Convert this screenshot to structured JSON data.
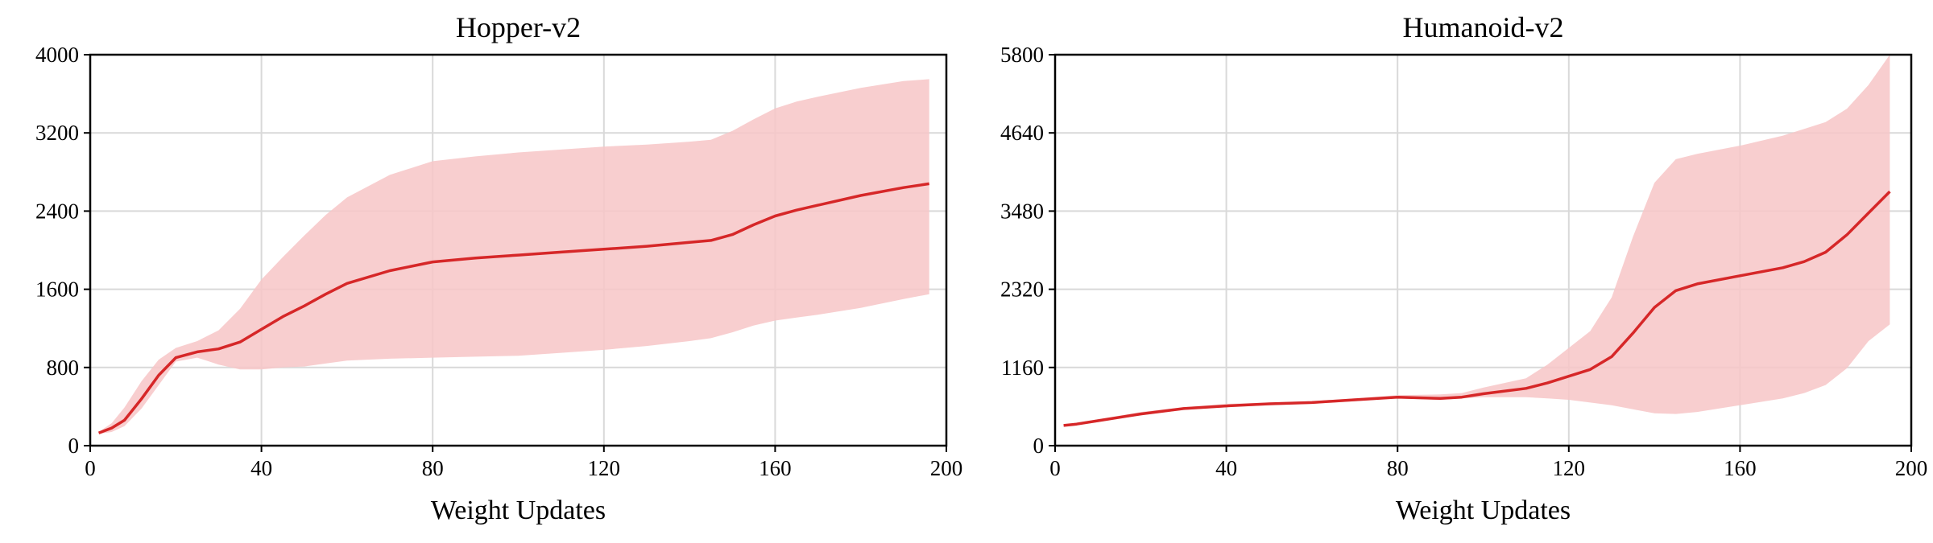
{
  "chart_data": [
    {
      "type": "line",
      "title": "Hopper-v2",
      "xlabel": "Weight Updates",
      "ylabel": "",
      "xlim": [
        0,
        200
      ],
      "ylim": [
        0,
        4000
      ],
      "xticks": [
        0,
        40,
        80,
        120,
        160,
        200
      ],
      "yticks": [
        0,
        800,
        1600,
        2400,
        3200,
        4000
      ],
      "grid": true,
      "line_color": "#d62728",
      "band_color": "#f7c6c7",
      "series": [
        {
          "x": [
            2,
            5,
            8,
            12,
            16,
            20,
            25,
            30,
            35,
            40,
            45,
            50,
            55,
            60,
            70,
            80,
            90,
            100,
            110,
            120,
            130,
            140,
            145,
            150,
            155,
            160,
            165,
            170,
            180,
            190,
            196
          ],
          "mean": [
            130,
            180,
            260,
            480,
            720,
            900,
            960,
            990,
            1060,
            1190,
            1320,
            1430,
            1550,
            1660,
            1790,
            1880,
            1920,
            1950,
            1980,
            2010,
            2040,
            2080,
            2100,
            2160,
            2260,
            2350,
            2410,
            2460,
            2560,
            2640,
            2680
          ],
          "upper": [
            140,
            230,
            390,
            660,
            880,
            1000,
            1070,
            1180,
            1400,
            1700,
            1930,
            2150,
            2360,
            2540,
            2770,
            2910,
            2960,
            3000,
            3030,
            3060,
            3080,
            3110,
            3130,
            3220,
            3340,
            3450,
            3520,
            3570,
            3660,
            3730,
            3750
          ],
          "lower": [
            120,
            140,
            200,
            380,
            620,
            860,
            900,
            830,
            780,
            780,
            800,
            810,
            840,
            870,
            890,
            900,
            910,
            920,
            950,
            980,
            1020,
            1070,
            1100,
            1160,
            1230,
            1280,
            1310,
            1340,
            1410,
            1500,
            1550
          ]
        }
      ]
    },
    {
      "type": "line",
      "title": "Humanoid-v2",
      "xlabel": "Weight Updates",
      "ylabel": "",
      "xlim": [
        0,
        200
      ],
      "ylim": [
        0,
        5800
      ],
      "xticks": [
        0,
        40,
        80,
        120,
        160,
        200
      ],
      "yticks": [
        0,
        1160,
        2320,
        3480,
        4640,
        5800
      ],
      "grid": true,
      "line_color": "#d62728",
      "band_color": "#f7c6c7",
      "series": [
        {
          "x": [
            2,
            5,
            10,
            20,
            30,
            40,
            50,
            60,
            70,
            80,
            90,
            95,
            100,
            110,
            115,
            120,
            125,
            130,
            135,
            140,
            145,
            150,
            160,
            170,
            175,
            180,
            185,
            190,
            195
          ],
          "mean": [
            300,
            320,
            370,
            470,
            550,
            590,
            620,
            640,
            680,
            720,
            700,
            720,
            770,
            850,
            930,
            1030,
            1130,
            1320,
            1670,
            2050,
            2300,
            2400,
            2520,
            2640,
            2730,
            2870,
            3130,
            3450,
            3770
          ],
          "upper": [
            310,
            340,
            390,
            500,
            570,
            620,
            640,
            660,
            700,
            750,
            760,
            780,
            860,
            1000,
            1200,
            1450,
            1700,
            2200,
            3100,
            3900,
            4250,
            4330,
            4450,
            4600,
            4700,
            4800,
            5000,
            5350,
            5800
          ],
          "lower": [
            290,
            300,
            350,
            450,
            530,
            570,
            600,
            620,
            660,
            700,
            680,
            700,
            720,
            720,
            700,
            680,
            640,
            600,
            540,
            480,
            470,
            500,
            600,
            700,
            780,
            900,
            1150,
            1550,
            1800
          ]
        }
      ]
    }
  ]
}
